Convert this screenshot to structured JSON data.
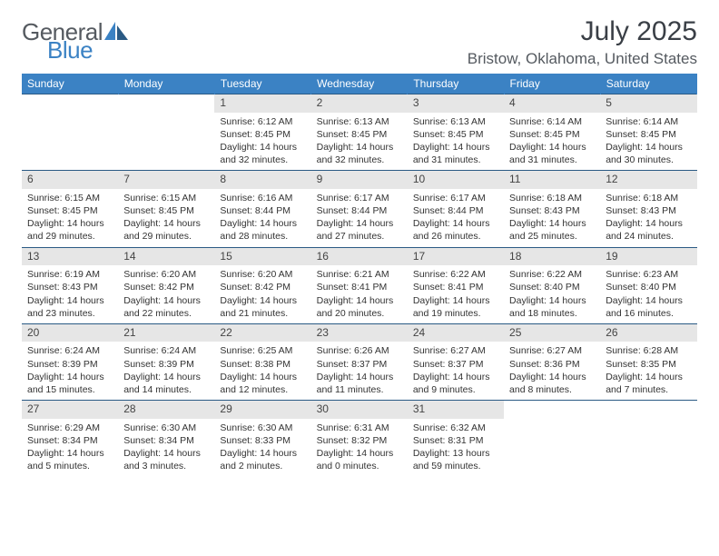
{
  "brand": {
    "part1": "General",
    "part2": "Blue"
  },
  "title": "July 2025",
  "location": "Bristow, Oklahoma, United States",
  "colors": {
    "header_bg": "#3b82c4",
    "header_text": "#ffffff",
    "rule": "#2a5a84",
    "daynum_bg": "#e6e6e6",
    "text": "#333333",
    "brand_gray": "#555a60",
    "brand_blue": "#3b82c4"
  },
  "weekdays": [
    "Sunday",
    "Monday",
    "Tuesday",
    "Wednesday",
    "Thursday",
    "Friday",
    "Saturday"
  ],
  "weeks": [
    [
      {
        "n": "",
        "sr": "",
        "ss": "",
        "dl": ""
      },
      {
        "n": "",
        "sr": "",
        "ss": "",
        "dl": ""
      },
      {
        "n": "1",
        "sr": "Sunrise: 6:12 AM",
        "ss": "Sunset: 8:45 PM",
        "dl": "Daylight: 14 hours and 32 minutes."
      },
      {
        "n": "2",
        "sr": "Sunrise: 6:13 AM",
        "ss": "Sunset: 8:45 PM",
        "dl": "Daylight: 14 hours and 32 minutes."
      },
      {
        "n": "3",
        "sr": "Sunrise: 6:13 AM",
        "ss": "Sunset: 8:45 PM",
        "dl": "Daylight: 14 hours and 31 minutes."
      },
      {
        "n": "4",
        "sr": "Sunrise: 6:14 AM",
        "ss": "Sunset: 8:45 PM",
        "dl": "Daylight: 14 hours and 31 minutes."
      },
      {
        "n": "5",
        "sr": "Sunrise: 6:14 AM",
        "ss": "Sunset: 8:45 PM",
        "dl": "Daylight: 14 hours and 30 minutes."
      }
    ],
    [
      {
        "n": "6",
        "sr": "Sunrise: 6:15 AM",
        "ss": "Sunset: 8:45 PM",
        "dl": "Daylight: 14 hours and 29 minutes."
      },
      {
        "n": "7",
        "sr": "Sunrise: 6:15 AM",
        "ss": "Sunset: 8:45 PM",
        "dl": "Daylight: 14 hours and 29 minutes."
      },
      {
        "n": "8",
        "sr": "Sunrise: 6:16 AM",
        "ss": "Sunset: 8:44 PM",
        "dl": "Daylight: 14 hours and 28 minutes."
      },
      {
        "n": "9",
        "sr": "Sunrise: 6:17 AM",
        "ss": "Sunset: 8:44 PM",
        "dl": "Daylight: 14 hours and 27 minutes."
      },
      {
        "n": "10",
        "sr": "Sunrise: 6:17 AM",
        "ss": "Sunset: 8:44 PM",
        "dl": "Daylight: 14 hours and 26 minutes."
      },
      {
        "n": "11",
        "sr": "Sunrise: 6:18 AM",
        "ss": "Sunset: 8:43 PM",
        "dl": "Daylight: 14 hours and 25 minutes."
      },
      {
        "n": "12",
        "sr": "Sunrise: 6:18 AM",
        "ss": "Sunset: 8:43 PM",
        "dl": "Daylight: 14 hours and 24 minutes."
      }
    ],
    [
      {
        "n": "13",
        "sr": "Sunrise: 6:19 AM",
        "ss": "Sunset: 8:43 PM",
        "dl": "Daylight: 14 hours and 23 minutes."
      },
      {
        "n": "14",
        "sr": "Sunrise: 6:20 AM",
        "ss": "Sunset: 8:42 PM",
        "dl": "Daylight: 14 hours and 22 minutes."
      },
      {
        "n": "15",
        "sr": "Sunrise: 6:20 AM",
        "ss": "Sunset: 8:42 PM",
        "dl": "Daylight: 14 hours and 21 minutes."
      },
      {
        "n": "16",
        "sr": "Sunrise: 6:21 AM",
        "ss": "Sunset: 8:41 PM",
        "dl": "Daylight: 14 hours and 20 minutes."
      },
      {
        "n": "17",
        "sr": "Sunrise: 6:22 AM",
        "ss": "Sunset: 8:41 PM",
        "dl": "Daylight: 14 hours and 19 minutes."
      },
      {
        "n": "18",
        "sr": "Sunrise: 6:22 AM",
        "ss": "Sunset: 8:40 PM",
        "dl": "Daylight: 14 hours and 18 minutes."
      },
      {
        "n": "19",
        "sr": "Sunrise: 6:23 AM",
        "ss": "Sunset: 8:40 PM",
        "dl": "Daylight: 14 hours and 16 minutes."
      }
    ],
    [
      {
        "n": "20",
        "sr": "Sunrise: 6:24 AM",
        "ss": "Sunset: 8:39 PM",
        "dl": "Daylight: 14 hours and 15 minutes."
      },
      {
        "n": "21",
        "sr": "Sunrise: 6:24 AM",
        "ss": "Sunset: 8:39 PM",
        "dl": "Daylight: 14 hours and 14 minutes."
      },
      {
        "n": "22",
        "sr": "Sunrise: 6:25 AM",
        "ss": "Sunset: 8:38 PM",
        "dl": "Daylight: 14 hours and 12 minutes."
      },
      {
        "n": "23",
        "sr": "Sunrise: 6:26 AM",
        "ss": "Sunset: 8:37 PM",
        "dl": "Daylight: 14 hours and 11 minutes."
      },
      {
        "n": "24",
        "sr": "Sunrise: 6:27 AM",
        "ss": "Sunset: 8:37 PM",
        "dl": "Daylight: 14 hours and 9 minutes."
      },
      {
        "n": "25",
        "sr": "Sunrise: 6:27 AM",
        "ss": "Sunset: 8:36 PM",
        "dl": "Daylight: 14 hours and 8 minutes."
      },
      {
        "n": "26",
        "sr": "Sunrise: 6:28 AM",
        "ss": "Sunset: 8:35 PM",
        "dl": "Daylight: 14 hours and 7 minutes."
      }
    ],
    [
      {
        "n": "27",
        "sr": "Sunrise: 6:29 AM",
        "ss": "Sunset: 8:34 PM",
        "dl": "Daylight: 14 hours and 5 minutes."
      },
      {
        "n": "28",
        "sr": "Sunrise: 6:30 AM",
        "ss": "Sunset: 8:34 PM",
        "dl": "Daylight: 14 hours and 3 minutes."
      },
      {
        "n": "29",
        "sr": "Sunrise: 6:30 AM",
        "ss": "Sunset: 8:33 PM",
        "dl": "Daylight: 14 hours and 2 minutes."
      },
      {
        "n": "30",
        "sr": "Sunrise: 6:31 AM",
        "ss": "Sunset: 8:32 PM",
        "dl": "Daylight: 14 hours and 0 minutes."
      },
      {
        "n": "31",
        "sr": "Sunrise: 6:32 AM",
        "ss": "Sunset: 8:31 PM",
        "dl": "Daylight: 13 hours and 59 minutes."
      },
      {
        "n": "",
        "sr": "",
        "ss": "",
        "dl": ""
      },
      {
        "n": "",
        "sr": "",
        "ss": "",
        "dl": ""
      }
    ]
  ]
}
